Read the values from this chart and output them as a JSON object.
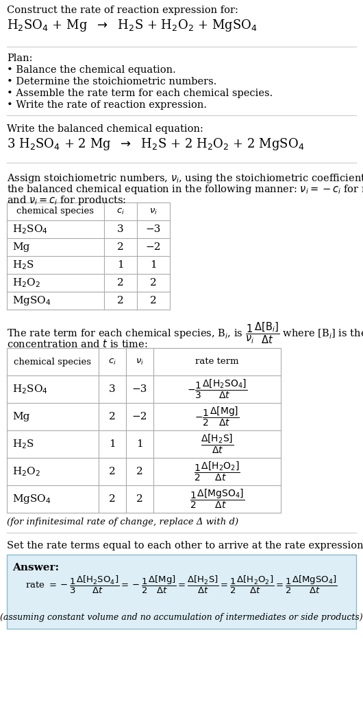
{
  "bg_color": "#ffffff",
  "section_bg": "#ddeef6",
  "table_border": "#aaaaaa",
  "text_color": "#000000",
  "line_color": "#cccccc",
  "title_line1": "Construct the rate of reaction expression for:",
  "plan_header": "Plan:",
  "plan_items": [
    "• Balance the chemical equation.",
    "• Determine the stoichiometric numbers.",
    "• Assemble the rate term for each chemical species.",
    "• Write the rate of reaction expression."
  ],
  "balanced_header": "Write the balanced chemical equation:",
  "table1_rows": [
    [
      "H_2SO_4",
      "3",
      "−3"
    ],
    [
      "Mg",
      "2",
      "−2"
    ],
    [
      "H_2S",
      "1",
      "1"
    ],
    [
      "H_2O_2",
      "2",
      "2"
    ],
    [
      "MgSO_4",
      "2",
      "2"
    ]
  ],
  "table2_rows": [
    [
      "H_2SO_4",
      "3",
      "−3"
    ],
    [
      "Mg",
      "2",
      "−2"
    ],
    [
      "H_2S",
      "1",
      "1"
    ],
    [
      "H_2O_2",
      "2",
      "2"
    ],
    [
      "MgSO_4",
      "2",
      "2"
    ]
  ],
  "infinitesimal_note": "(for infinitesimal rate of change, replace Δ with d)",
  "set_text": "Set the rate terms equal to each other to arrive at the rate expression:",
  "answer_label": "Answer:",
  "assumption_note": "(assuming constant volume and no accumulation of intermediates or side products)"
}
